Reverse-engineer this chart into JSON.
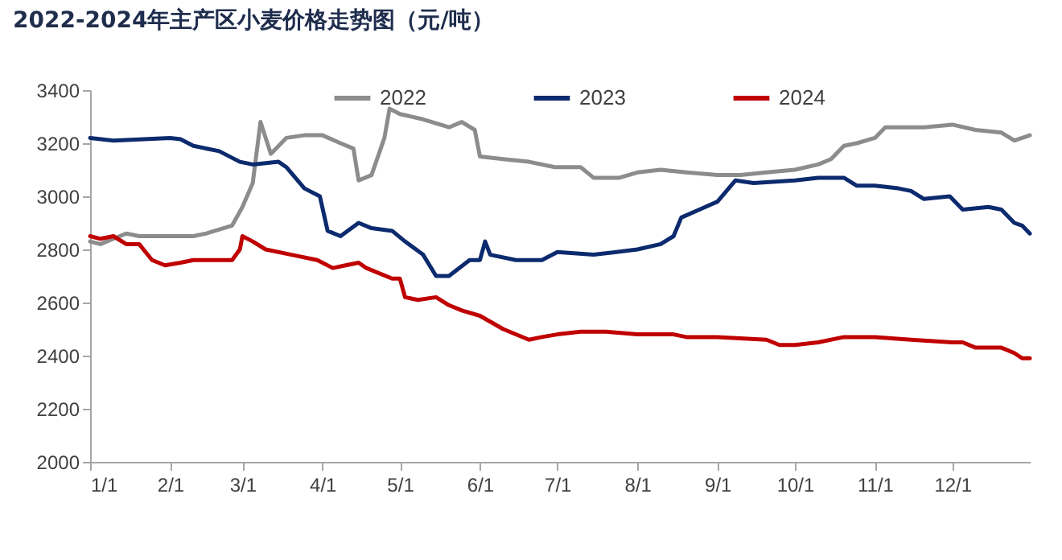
{
  "chart_data": {
    "type": "line",
    "title": "2022-2024年主产区小麦价格走势图（元/吨）",
    "xlim": [
      "--01-01",
      "--12-31"
    ],
    "xticks": [
      {
        "value": "--01-01",
        "label": "1/1"
      },
      {
        "value": "--02-01",
        "label": "2/1"
      },
      {
        "value": "--03-01",
        "label": "3/1"
      },
      {
        "value": "--04-01",
        "label": "4/1"
      },
      {
        "value": "--05-01",
        "label": "5/1"
      },
      {
        "value": "--06-01",
        "label": "6/1"
      },
      {
        "value": "--07-01",
        "label": "7/1"
      },
      {
        "value": "--08-01",
        "label": "8/1"
      },
      {
        "value": "--09-01",
        "label": "9/1"
      },
      {
        "value": "--10-01",
        "label": "10/1"
      },
      {
        "value": "--11-01",
        "label": "11/1"
      },
      {
        "value": "--12-01",
        "label": "12/1"
      }
    ],
    "ylim": [
      2000,
      3400
    ],
    "yticks": [
      2000,
      2200,
      2400,
      2600,
      2800,
      3000,
      3200,
      3400
    ],
    "grid": false,
    "legend": "top",
    "marker": "none",
    "line_style": "solid",
    "series": [
      {
        "name": "2022",
        "color": "#8c8c8c",
        "x": [
          "--01-01",
          "--01-05",
          "--01-10",
          "--01-15",
          "--01-20",
          "--02-01",
          "--02-10",
          "--02-15",
          "--02-25",
          "--03-01",
          "--03-05",
          "--03-08",
          "--03-12",
          "--03-18",
          "--03-25",
          "--04-01",
          "--04-08",
          "--04-13",
          "--04-15",
          "--04-20",
          "--04-25",
          "--04-27",
          "--05-01",
          "--05-10",
          "--05-20",
          "--05-25",
          "--05-30",
          "--06-01",
          "--06-10",
          "--06-20",
          "--06-30",
          "--07-10",
          "--07-15",
          "--07-25",
          "--08-01",
          "--08-10",
          "--08-20",
          "--09-01",
          "--09-10",
          "--09-20",
          "--10-01",
          "--10-10",
          "--10-15",
          "--10-20",
          "--10-25",
          "--11-01",
          "--11-05",
          "--11-20",
          "--12-01",
          "--12-10",
          "--12-20",
          "--12-25",
          "--12-31"
        ],
        "values": [
          2830,
          2820,
          2840,
          2860,
          2850,
          2850,
          2850,
          2860,
          2890,
          2960,
          3050,
          3280,
          3160,
          3220,
          3230,
          3230,
          3200,
          3180,
          3060,
          3080,
          3220,
          3330,
          3310,
          3290,
          3260,
          3280,
          3250,
          3150,
          3140,
          3130,
          3110,
          3110,
          3070,
          3070,
          3090,
          3100,
          3090,
          3080,
          3080,
          3090,
          3100,
          3120,
          3140,
          3190,
          3200,
          3220,
          3260,
          3260,
          3270,
          3250,
          3240,
          3210,
          3230
        ]
      },
      {
        "name": "2023",
        "color": "#0c2a6e",
        "x": [
          "--01-01",
          "--01-10",
          "--02-01",
          "--02-05",
          "--02-10",
          "--02-20",
          "--02-28",
          "--03-05",
          "--03-15",
          "--03-18",
          "--03-25",
          "--03-31",
          "--04-03",
          "--04-08",
          "--04-15",
          "--04-20",
          "--04-28",
          "--05-03",
          "--05-10",
          "--05-15",
          "--05-20",
          "--05-28",
          "--06-01",
          "--06-03",
          "--06-05",
          "--06-15",
          "--06-25",
          "--07-01",
          "--07-15",
          "--08-01",
          "--08-10",
          "--08-15",
          "--08-18",
          "--08-25",
          "--09-01",
          "--09-08",
          "--09-15",
          "--10-01",
          "--10-10",
          "--10-20",
          "--10-25",
          "--11-01",
          "--11-10",
          "--11-15",
          "--11-20",
          "--11-30",
          "--12-05",
          "--12-15",
          "--12-20",
          "--12-25",
          "--12-28",
          "--12-31"
        ],
        "values": [
          3220,
          3210,
          3220,
          3215,
          3190,
          3170,
          3130,
          3120,
          3130,
          3110,
          3030,
          3000,
          2870,
          2850,
          2900,
          2880,
          2870,
          2830,
          2780,
          2700,
          2700,
          2760,
          2760,
          2830,
          2780,
          2760,
          2760,
          2790,
          2780,
          2800,
          2820,
          2850,
          2920,
          2950,
          2980,
          3060,
          3050,
          3060,
          3070,
          3070,
          3040,
          3040,
          3030,
          3020,
          2990,
          3000,
          2950,
          2960,
          2950,
          2900,
          2890,
          2860
        ]
      },
      {
        "name": "2024",
        "color": "#c00000",
        "x": [
          "--01-01",
          "--01-05",
          "--01-10",
          "--01-15",
          "--01-20",
          "--01-25",
          "--01-30",
          "--02-05",
          "--02-10",
          "--02-25",
          "--02-28",
          "--03-01",
          "--03-05",
          "--03-10",
          "--03-20",
          "--03-30",
          "--04-05",
          "--04-10",
          "--04-15",
          "--04-18",
          "--04-28",
          "--05-01",
          "--05-03",
          "--05-08",
          "--05-15",
          "--05-20",
          "--05-25",
          "--06-01",
          "--06-10",
          "--06-20",
          "--06-25",
          "--07-01",
          "--07-10",
          "--07-20",
          "--08-01",
          "--08-15",
          "--08-20",
          "--09-01",
          "--09-20",
          "--09-25",
          "--10-01",
          "--10-10",
          "--10-20",
          "--10-25",
          "--11-01",
          "--11-15",
          "--12-01",
          "--12-05",
          "--12-10",
          "--12-20",
          "--12-25",
          "--12-28",
          "--12-31"
        ],
        "values": [
          2850,
          2840,
          2850,
          2820,
          2820,
          2760,
          2740,
          2750,
          2760,
          2760,
          2800,
          2850,
          2830,
          2800,
          2780,
          2760,
          2730,
          2740,
          2750,
          2730,
          2690,
          2690,
          2620,
          2610,
          2620,
          2590,
          2570,
          2550,
          2500,
          2460,
          2470,
          2480,
          2490,
          2490,
          2480,
          2480,
          2470,
          2470,
          2460,
          2440,
          2440,
          2450,
          2470,
          2470,
          2470,
          2460,
          2450,
          2450,
          2430,
          2430,
          2410,
          2390,
          2390
        ]
      }
    ]
  }
}
